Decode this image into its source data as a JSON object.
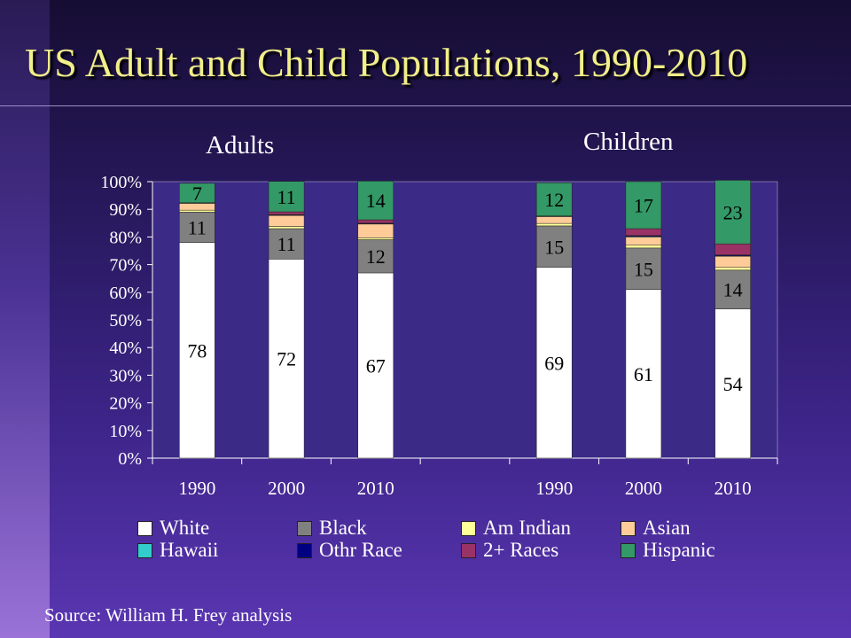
{
  "title": "US Adult and Child Populations, 1990-2010",
  "source": "Source: William H. Frey analysis",
  "chart_data": {
    "type": "bar",
    "stacked": true,
    "ylim": [
      0,
      100
    ],
    "y_ticks": [
      "0%",
      "10%",
      "20%",
      "30%",
      "40%",
      "50%",
      "60%",
      "70%",
      "80%",
      "90%",
      "100%"
    ],
    "grid": false,
    "legend_position": "bottom",
    "groups": [
      {
        "label": "Adults",
        "categories": [
          "1990",
          "2000",
          "2010"
        ]
      },
      {
        "label": "Children",
        "categories": [
          "1990",
          "2000",
          "2010"
        ]
      }
    ],
    "series": [
      {
        "name": "White",
        "color": "#ffffff",
        "values": [
          78,
          72,
          67,
          69,
          61,
          54
        ]
      },
      {
        "name": "Black",
        "color": "#808080",
        "values": [
          11,
          11,
          12,
          15,
          15,
          14
        ]
      },
      {
        "name": "Am Indian",
        "color": "#ffff99",
        "values": [
          0.7,
          0.8,
          0.7,
          0.9,
          1,
          1
        ]
      },
      {
        "name": "Asian",
        "color": "#ffcc99",
        "values": [
          2.5,
          4,
          5,
          2.5,
          3,
          4
        ]
      },
      {
        "name": "Hawaii",
        "color": "#33cccc",
        "values": [
          0.1,
          0.1,
          0.1,
          0.1,
          0.2,
          0.2
        ]
      },
      {
        "name": "Othr Race",
        "color": "#000080",
        "values": [
          0.1,
          0.2,
          0.2,
          0.1,
          0.3,
          0.3
        ]
      },
      {
        "name": "2+ Races",
        "color": "#993366",
        "values": [
          0,
          1,
          1.2,
          0,
          2.5,
          4
        ]
      },
      {
        "name": "Hispanic",
        "color": "#339966",
        "values": [
          7,
          11,
          14,
          12,
          17,
          23
        ]
      }
    ],
    "data_labels": [
      {
        "series": "White",
        "values": [
          "78",
          "72",
          "67",
          "69",
          "61",
          "54"
        ]
      },
      {
        "series": "Black",
        "values": [
          "11",
          "11",
          "12",
          "15",
          "15",
          "14"
        ]
      },
      {
        "series": "Hispanic",
        "values": [
          "7",
          "11",
          "14",
          "12",
          "17",
          "23"
        ]
      }
    ]
  }
}
